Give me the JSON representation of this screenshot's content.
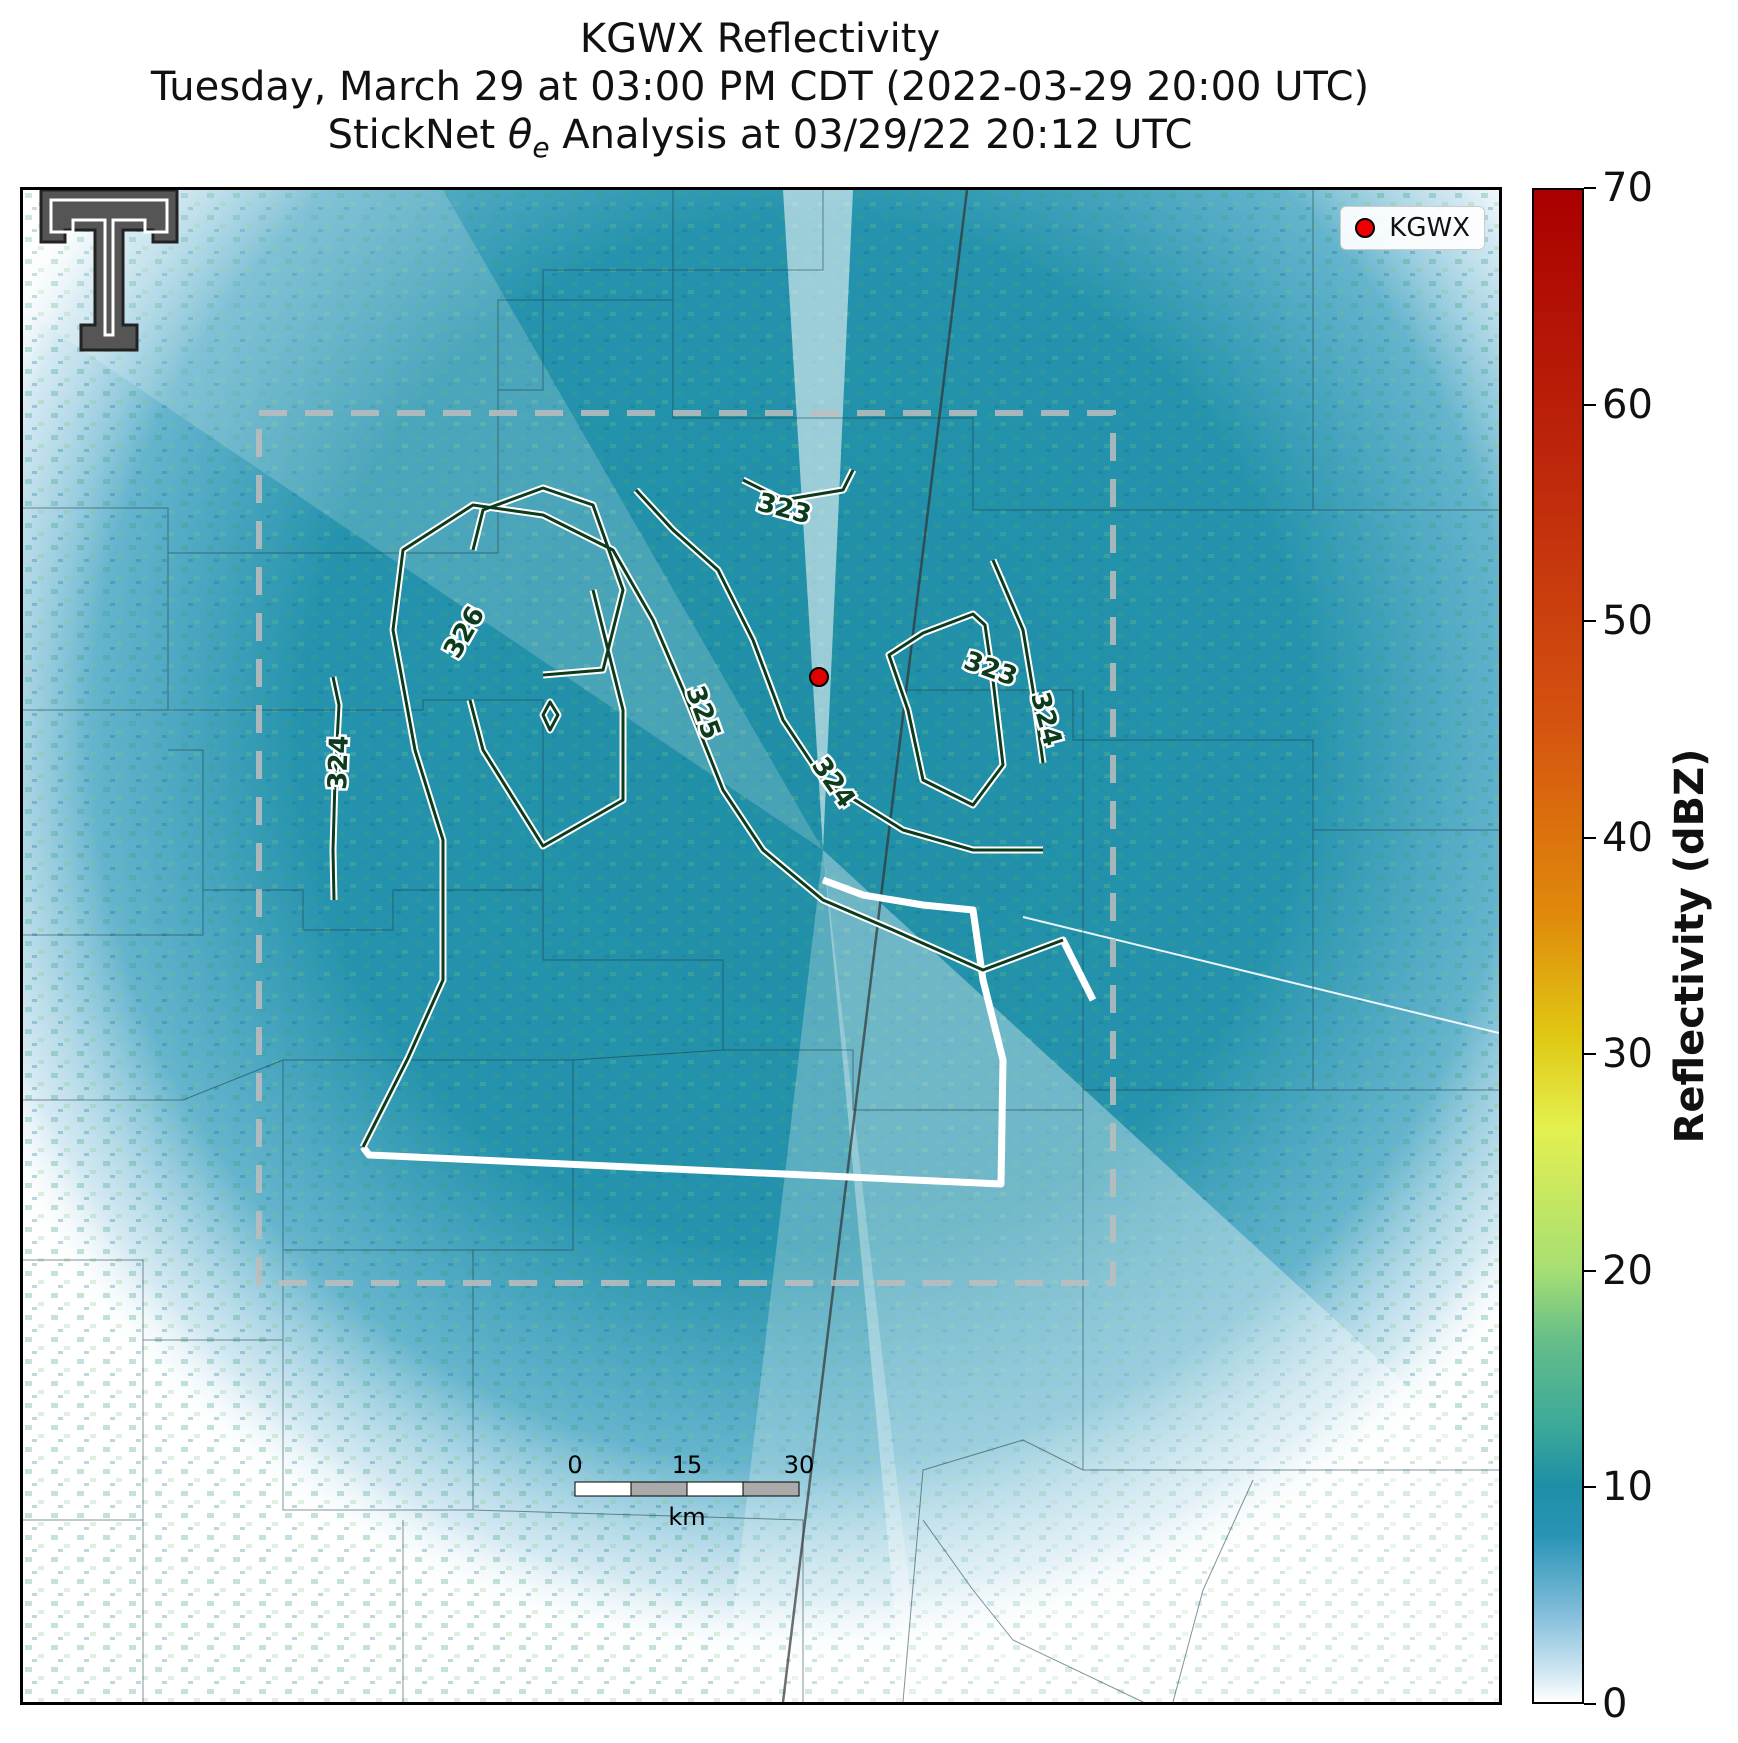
{
  "title": {
    "line1": "KGWX Reflectivity",
    "line2": "Tuesday, March 29 at 03:00 PM CDT (2022-03-29 20:00 UTC)",
    "line3": "StickNet θe Analysis at 03/29/22 20:12 UTC"
  },
  "legend": {
    "entry": "KGWX",
    "marker_color": "#e00000"
  },
  "radar_site": "KGWX",
  "colorbar": {
    "label": "Reflectivity (dBZ)",
    "ticks": [
      "0",
      "10",
      "20",
      "30",
      "40",
      "50",
      "60",
      "70"
    ],
    "range": [
      0,
      70
    ]
  },
  "contours": {
    "variable": "θe",
    "labels": [
      "323",
      "323",
      "324",
      "324",
      "324",
      "325",
      "326"
    ],
    "color": "#0c3b1e"
  },
  "scalebar": {
    "ticks": [
      "0",
      "15",
      "30"
    ],
    "unit": "km"
  },
  "logo": {
    "name": "texas-tech-double-t-logo"
  },
  "analysis_box": {
    "style": "dashed-gray"
  }
}
